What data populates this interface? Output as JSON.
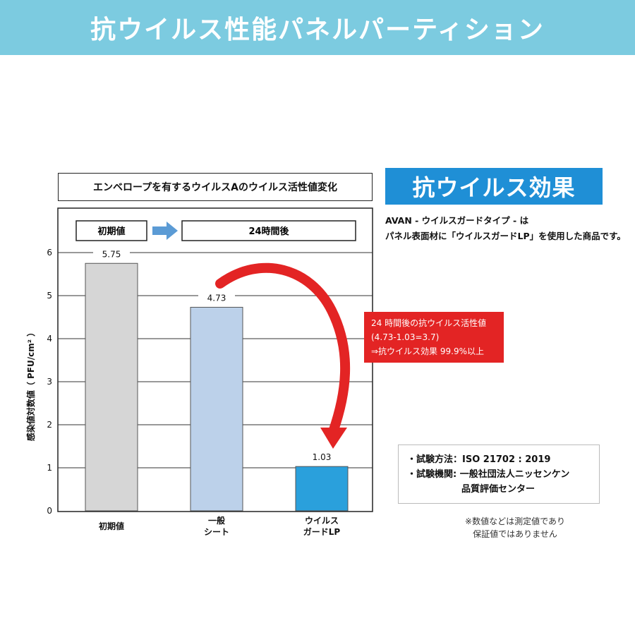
{
  "header": {
    "title": "抗ウイルス性能パネルパーティション"
  },
  "badge": {
    "label": "抗ウイルス効果"
  },
  "description": {
    "line1": "AVAN - ウイルスガードタイプ - は",
    "line2": "パネル表面材に「ウイルスガードLP」を使用した商品です。"
  },
  "callout": {
    "line1": "24 時間後の抗ウイルス活性値",
    "line2": "(4.73-1.03=3.7)",
    "line3": "⇒抗ウイルス効果 99.9%以上"
  },
  "test_info": {
    "method": "・試験方法：ISO 21702 : 2019",
    "org_line1": "・試験機関: 一般社団法人ニッセンケン",
    "org_line2": "品質評価センター"
  },
  "note": {
    "line1": "※数値などは測定値であり",
    "line2": "保証値ではありません"
  },
  "phase_labels": {
    "initial": "初期値",
    "after": "24時間後"
  },
  "colors": {
    "banner": "#7ccbe0",
    "badge": "#1f8fd6",
    "callout": "#e32424",
    "arrow": "#e32424",
    "phase_arrow": "#5b9bd5"
  },
  "chart_data": {
    "type": "bar",
    "title": "エンベロープを有するウイルスAのウイルス活性値変化",
    "ylabel": "感染値対数値（ PFU/cm² ）",
    "xlabel": "",
    "ylim": [
      0,
      6
    ],
    "yticks": [
      "0",
      "1",
      "2",
      "3",
      "4",
      "5",
      "6"
    ],
    "grid": true,
    "categories": [
      {
        "line1": "初期値",
        "line2": ""
      },
      {
        "line1": "一般",
        "line2": "シート"
      },
      {
        "line1": "ウイルス",
        "line2": "ガードLP"
      }
    ],
    "values": [
      5.75,
      4.73,
      1.03
    ],
    "value_labels": [
      "5.75",
      "4.73",
      "1.03"
    ],
    "bar_colors": [
      "#d6d6d6",
      "#bcd1ea",
      "#2aa0dc"
    ]
  }
}
